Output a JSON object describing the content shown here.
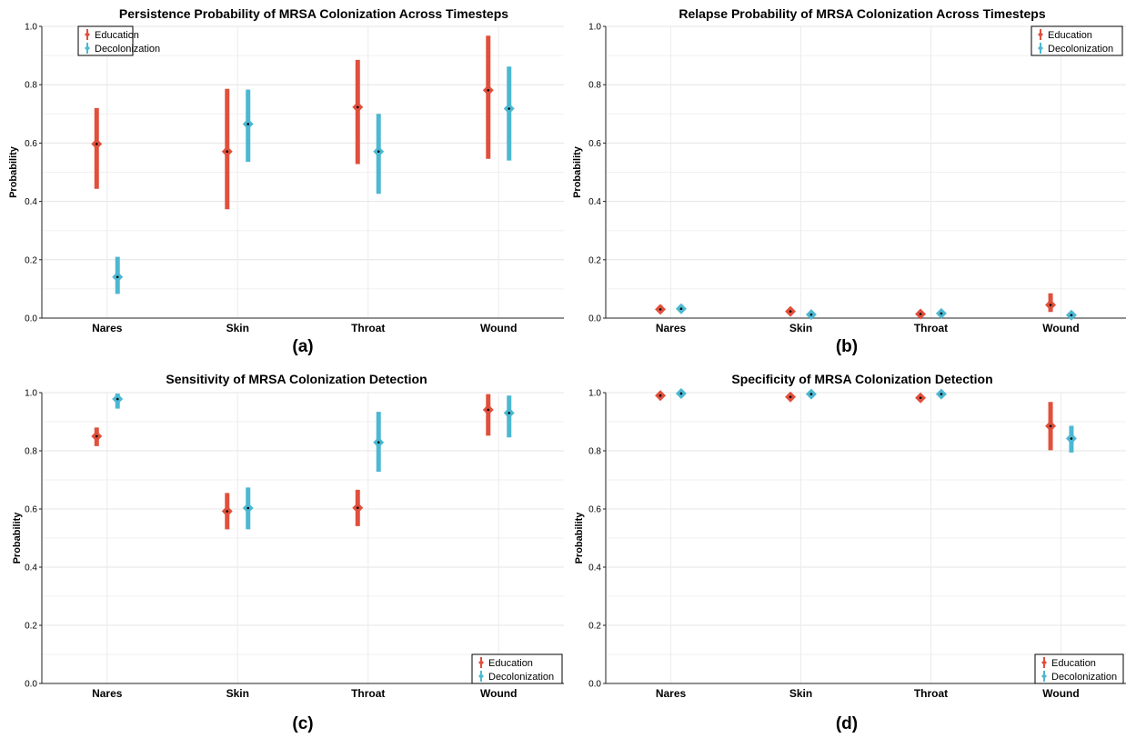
{
  "colors": {
    "education": "#e0503c",
    "decolonization": "#4cb8d2"
  },
  "chart_data": [
    {
      "panel_label": "(a)",
      "type": "errorbar",
      "title": "Persistence Probability of MRSA Colonization Across Timesteps",
      "ylabel": "Probability",
      "xlabel": "",
      "ylim": [
        0,
        1
      ],
      "yticks": [
        "0.0",
        "0.2",
        "0.4",
        "0.6",
        "0.8",
        "1.0"
      ],
      "grid": true,
      "legend": "top-left",
      "categories": [
        "Nares",
        "Skin",
        "Throat",
        "Wound"
      ],
      "series": [
        {
          "name": "Education",
          "values": [
            0.597,
            0.571,
            0.723,
            0.781
          ],
          "lower": [
            0.443,
            0.373,
            0.528,
            0.546
          ],
          "upper": [
            0.72,
            0.786,
            0.885,
            0.968
          ]
        },
        {
          "name": "Decolonization",
          "values": [
            0.141,
            0.665,
            0.571,
            0.718
          ],
          "lower": [
            0.083,
            0.536,
            0.426,
            0.54
          ],
          "upper": [
            0.21,
            0.783,
            0.7,
            0.862
          ]
        }
      ]
    },
    {
      "panel_label": "(b)",
      "type": "errorbar",
      "title": "Relapse Probability of MRSA Colonization Across Timesteps",
      "ylabel": "Probability",
      "xlabel": "",
      "ylim": [
        0,
        1
      ],
      "yticks": [
        "0.0",
        "0.2",
        "0.4",
        "0.6",
        "0.8",
        "1.0"
      ],
      "grid": true,
      "legend": "top-right",
      "categories": [
        "Nares",
        "Skin",
        "Throat",
        "Wound"
      ],
      "series": [
        {
          "name": "Education",
          "values": [
            0.03,
            0.023,
            0.014,
            0.045
          ],
          "lower": [
            0.02,
            0.014,
            0.007,
            0.021
          ],
          "upper": [
            0.043,
            0.034,
            0.023,
            0.085
          ]
        },
        {
          "name": "Decolonization",
          "values": [
            0.032,
            0.012,
            0.016,
            0.01
          ],
          "lower": [
            0.022,
            0.005,
            0.008,
            0.003
          ],
          "upper": [
            0.045,
            0.021,
            0.026,
            0.022
          ]
        }
      ]
    },
    {
      "panel_label": "(c)",
      "type": "errorbar",
      "title": "Sensitivity of MRSA Colonization Detection",
      "ylabel": "Probability",
      "xlabel": "",
      "ylim": [
        0,
        1
      ],
      "yticks": [
        "0.0",
        "0.2",
        "0.4",
        "0.6",
        "0.8",
        "1.0"
      ],
      "grid": true,
      "legend": "bottom-right",
      "categories": [
        "Nares",
        "Skin",
        "Throat",
        "Wound"
      ],
      "series": [
        {
          "name": "Education",
          "values": [
            0.85,
            0.592,
            0.604,
            0.941
          ],
          "lower": [
            0.816,
            0.53,
            0.541,
            0.852
          ],
          "upper": [
            0.88,
            0.655,
            0.666,
            0.995
          ]
        },
        {
          "name": "Decolonization",
          "values": [
            0.978,
            0.603,
            0.829,
            0.93
          ],
          "lower": [
            0.945,
            0.53,
            0.728,
            0.846
          ],
          "upper": [
            0.997,
            0.674,
            0.934,
            0.99
          ]
        }
      ]
    },
    {
      "panel_label": "(d)",
      "type": "errorbar",
      "title": "Specificity of MRSA Colonization Detection",
      "ylabel": "Probability",
      "xlabel": "",
      "ylim": [
        0,
        1
      ],
      "yticks": [
        "0.0",
        "0.2",
        "0.4",
        "0.6",
        "0.8",
        "1.0"
      ],
      "grid": true,
      "legend": "bottom-right",
      "categories": [
        "Nares",
        "Skin",
        "Throat",
        "Wound"
      ],
      "series": [
        {
          "name": "Education",
          "values": [
            0.99,
            0.985,
            0.982,
            0.885
          ],
          "lower": [
            0.98,
            0.974,
            0.97,
            0.802
          ],
          "upper": [
            0.997,
            0.994,
            0.992,
            0.968
          ]
        },
        {
          "name": "Decolonization",
          "values": [
            0.997,
            0.995,
            0.995,
            0.842
          ],
          "lower": [
            0.992,
            0.988,
            0.988,
            0.794
          ],
          "upper": [
            1.0,
            0.999,
            0.999,
            0.886
          ]
        }
      ]
    }
  ]
}
